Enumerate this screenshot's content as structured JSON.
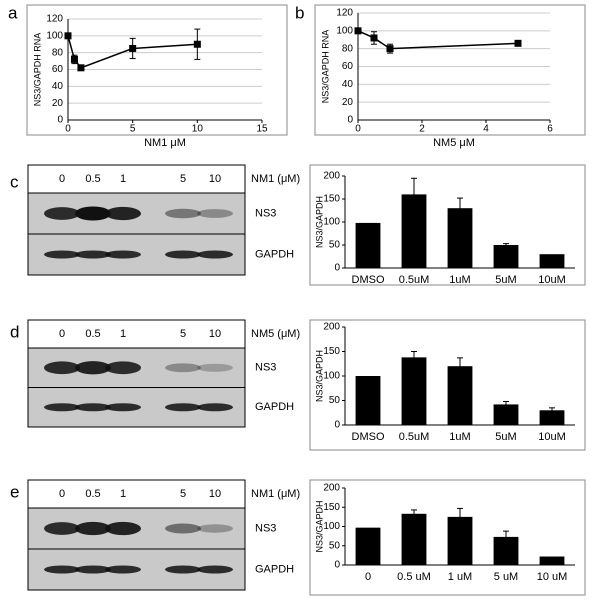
{
  "panels": [
    "a",
    "b",
    "c",
    "d",
    "e"
  ],
  "blots": [
    {
      "lanes": [
        "0",
        "0.5",
        "1",
        "5",
        "10"
      ],
      "treatment": "NM1 (μM)",
      "bands": [
        "NS3",
        "GAPDH"
      ]
    },
    {
      "lanes": [
        "0",
        "0.5",
        "1",
        "5",
        "10"
      ],
      "treatment": "NM5 (μM)",
      "bands": [
        "NS3",
        "GAPDH"
      ]
    },
    {
      "lanes": [
        "0",
        "0.5",
        "1",
        "5",
        "10"
      ],
      "treatment": "NM1 (μM)",
      "bands": [
        "NS3",
        "GAPDH"
      ]
    }
  ],
  "chart_data": [
    {
      "type": "line",
      "ylabel": "NS3/GAPDH RNA",
      "xlabel": "NM1 μM",
      "x": [
        0,
        0.5,
        1,
        5,
        10
      ],
      "values": [
        100,
        72,
        62,
        85,
        90
      ],
      "errors": [
        3,
        5,
        3,
        12,
        18
      ],
      "color": "#000000",
      "xlim": [
        0,
        15
      ],
      "xticks": [
        0,
        5,
        10,
        15
      ],
      "ylim": [
        0,
        120
      ],
      "yticks": [
        0,
        20,
        40,
        60,
        80,
        100,
        120
      ],
      "grid": true
    },
    {
      "type": "line",
      "ylabel": "NS3/GAPDH RNA",
      "xlabel": "NM5 μM",
      "x": [
        0,
        0.5,
        1,
        5
      ],
      "values": [
        100,
        92,
        80,
        86
      ],
      "errors": [
        3,
        7,
        5,
        3
      ],
      "color": "#000000",
      "xlim": [
        0,
        6
      ],
      "xticks": [
        0,
        2,
        4,
        6
      ],
      "ylim": [
        0,
        120
      ],
      "yticks": [
        0,
        20,
        40,
        60,
        80,
        100,
        120
      ],
      "grid": true
    },
    {
      "type": "bar",
      "ylabel": "NS3/GAPDH",
      "categories": [
        "DMSO",
        "0.5uM",
        "1uM",
        "5uM",
        "10uM"
      ],
      "values": [
        98,
        160,
        130,
        50,
        30
      ],
      "errors": [
        null,
        35,
        22,
        3,
        null
      ],
      "color": "#000000",
      "ylim": [
        0,
        200
      ],
      "yticks": [
        0,
        50,
        100,
        150,
        200
      ],
      "grid": false
    },
    {
      "type": "bar",
      "ylabel": "NS3/GAPDH",
      "categories": [
        "DMSO",
        "0.5uM",
        "1uM",
        "5uM",
        "10uM"
      ],
      "values": [
        100,
        138,
        120,
        42,
        30
      ],
      "errors": [
        null,
        12,
        17,
        6,
        5
      ],
      "color": "#000000",
      "ylim": [
        0,
        200
      ],
      "yticks": [
        0,
        50,
        100,
        150,
        200
      ],
      "grid": false
    },
    {
      "type": "bar",
      "ylabel": "NS3/GAPDH",
      "categories": [
        "0",
        "0.5 uM",
        "1 uM",
        "5 uM",
        "10 uM"
      ],
      "values": [
        97,
        133,
        125,
        73,
        22
      ],
      "errors": [
        null,
        10,
        22,
        15,
        null
      ],
      "color": "#000000",
      "ylim": [
        0,
        200
      ],
      "yticks": [
        0,
        50,
        100,
        150,
        200
      ],
      "grid": false
    }
  ]
}
